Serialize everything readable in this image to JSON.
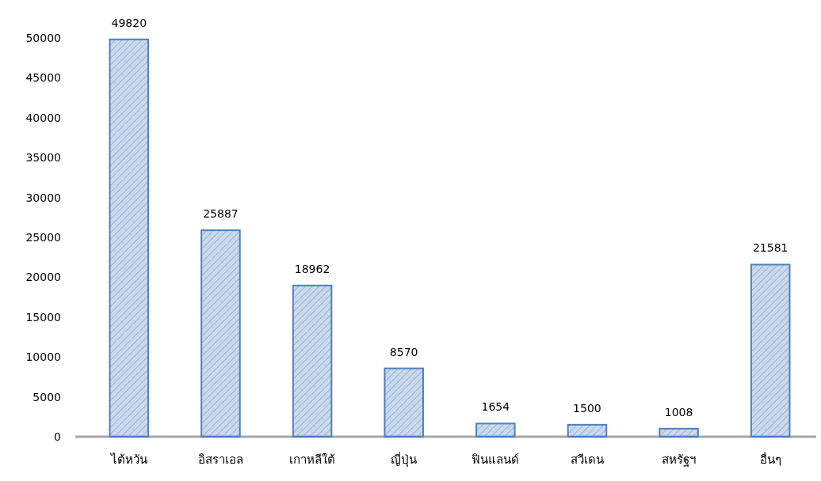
{
  "chart_data": {
    "type": "bar",
    "categories": [
      "ไต้หวัน",
      "อิสราเอล",
      "เกาหลีใต้",
      "ญี่ปุ่น",
      "ฟินแลนด์",
      "สวีเดน",
      "สหรัฐฯ",
      "อื่นๆ"
    ],
    "values": [
      49820,
      25887,
      18962,
      8570,
      1654,
      1500,
      1008,
      21581
    ],
    "color": "#4f81bd",
    "ylim": [
      0,
      50000
    ],
    "yticks": [
      0,
      5000,
      10000,
      15000,
      20000,
      25000,
      30000,
      35000,
      40000,
      45000,
      50000
    ],
    "grid": false,
    "data_labels": true
  }
}
